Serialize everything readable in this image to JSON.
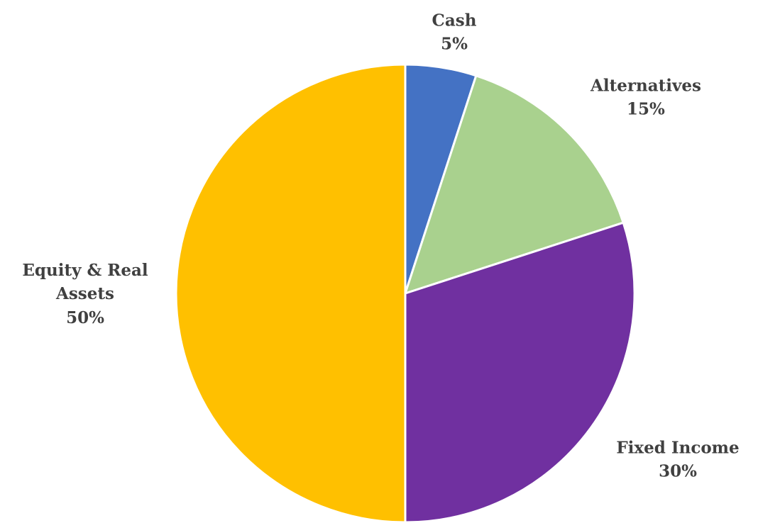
{
  "chart_data": {
    "type": "pie",
    "categories": [
      "Cash",
      "Alternatives",
      "Fixed Income",
      "Equity & Real Assets"
    ],
    "values": [
      5,
      15,
      30,
      50
    ],
    "value_labels": [
      "5%",
      "15%",
      "30%",
      "50%"
    ],
    "colors": [
      "#4472c4",
      "#a9d18e",
      "#7030a0",
      "#ffc000"
    ]
  }
}
